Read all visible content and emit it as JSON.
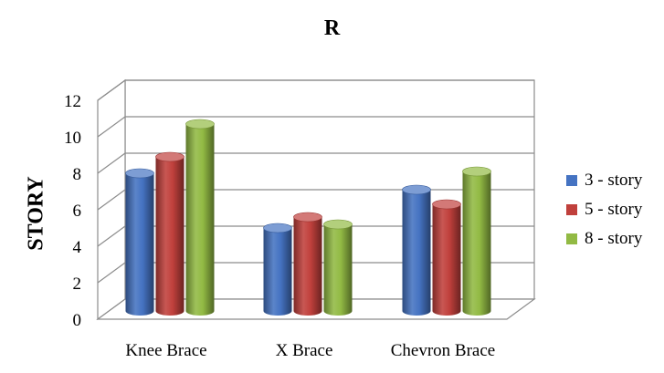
{
  "chart_data": {
    "type": "bar",
    "title": "R",
    "ylabel": "STORY",
    "xlabel": "",
    "categories": [
      "Knee Brace",
      "X Brace",
      "Chevron Brace"
    ],
    "series": [
      {
        "name": "3 - story",
        "values": [
          7.7,
          4.7,
          6.8
        ],
        "color": "#4573C2"
      },
      {
        "name": "5 - story",
        "values": [
          8.6,
          5.3,
          6.0
        ],
        "color": "#C0403C"
      },
      {
        "name": "8 - story",
        "values": [
          10.4,
          4.9,
          7.8
        ],
        "color": "#92BA44"
      }
    ],
    "ylim": [
      0,
      12
    ],
    "yticks": [
      0,
      2,
      4,
      6,
      8,
      10,
      12
    ],
    "grid": true,
    "legend": "right",
    "style": "3d-cylinder"
  }
}
